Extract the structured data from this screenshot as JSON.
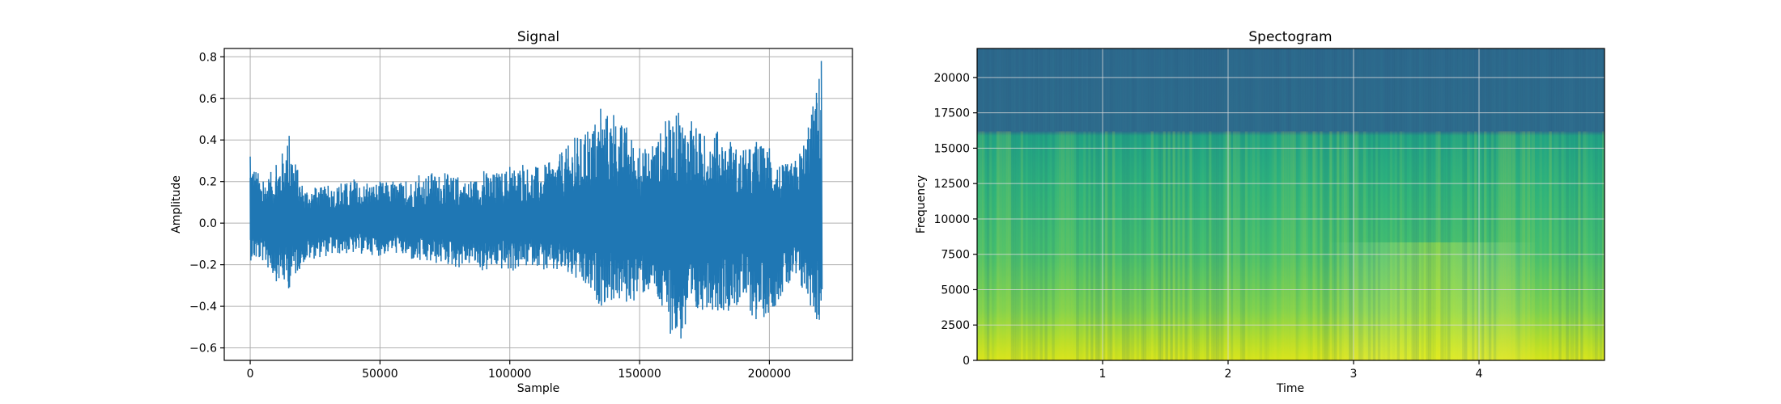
{
  "colors": {
    "signal_line": "#1f77b4",
    "spectrogram_low": "#2d6b8e",
    "spectrogram_mid": "#22a884",
    "spectrogram_high": "#dde318"
  },
  "chart_data": [
    {
      "type": "line",
      "title": "Signal",
      "xlabel": "Sample",
      "ylabel": "Amplitude",
      "xlim": [
        -10000,
        232000
      ],
      "ylim": [
        -0.66,
        0.84
      ],
      "grid": true,
      "x_ticks": [
        0,
        50000,
        100000,
        150000,
        200000
      ],
      "x_tick_labels": [
        "0",
        "50000",
        "100000",
        "150000",
        "200000"
      ],
      "y_ticks": [
        -0.6,
        -0.4,
        -0.2,
        0.0,
        0.2,
        0.4,
        0.6,
        0.8
      ],
      "y_tick_labels": [
        "−0.6",
        "−0.4",
        "−0.2",
        "0.0",
        "0.2",
        "0.4",
        "0.6",
        "0.8"
      ],
      "series": [
        {
          "x": [
            0,
            5000,
            10000,
            15000,
            20000,
            25000,
            30000,
            35000,
            40000,
            45000,
            50000,
            55000,
            60000,
            65000,
            70000,
            75000,
            80000,
            85000,
            90000,
            95000,
            100000,
            105000,
            110000,
            115000,
            120000,
            125000,
            130000,
            135000,
            140000,
            145000,
            150000,
            155000,
            160000,
            165000,
            170000,
            175000,
            180000,
            185000,
            190000,
            195000,
            200000,
            205000,
            210000,
            215000,
            220000
          ],
          "upper": [
            0.32,
            0.2,
            0.28,
            0.42,
            0.18,
            0.17,
            0.18,
            0.19,
            0.21,
            0.19,
            0.2,
            0.2,
            0.2,
            0.23,
            0.24,
            0.24,
            0.22,
            0.2,
            0.25,
            0.24,
            0.27,
            0.28,
            0.27,
            0.29,
            0.34,
            0.41,
            0.44,
            0.55,
            0.52,
            0.46,
            0.36,
            0.37,
            0.49,
            0.53,
            0.49,
            0.42,
            0.44,
            0.39,
            0.35,
            0.39,
            0.36,
            0.28,
            0.3,
            0.46,
            0.78
          ],
          "lower": [
            -0.18,
            -0.19,
            -0.28,
            -0.32,
            -0.2,
            -0.17,
            -0.16,
            -0.15,
            -0.15,
            -0.15,
            -0.16,
            -0.14,
            -0.17,
            -0.2,
            -0.2,
            -0.2,
            -0.22,
            -0.2,
            -0.24,
            -0.22,
            -0.24,
            -0.22,
            -0.2,
            -0.25,
            -0.24,
            -0.28,
            -0.34,
            -0.4,
            -0.38,
            -0.4,
            -0.36,
            -0.33,
            -0.5,
            -0.59,
            -0.53,
            -0.4,
            -0.43,
            -0.42,
            -0.4,
            -0.48,
            -0.44,
            -0.35,
            -0.3,
            -0.38,
            -0.53
          ]
        }
      ]
    },
    {
      "type": "heatmap",
      "title": "Spectogram",
      "xlabel": "Time",
      "ylabel": "Frequency",
      "xlim": [
        0.0,
        5.0
      ],
      "ylim": [
        0,
        22050
      ],
      "grid": true,
      "x_ticks": [
        1,
        2,
        3,
        4
      ],
      "x_tick_labels": [
        "1",
        "2",
        "3",
        "4"
      ],
      "y_ticks": [
        0,
        2500,
        5000,
        7500,
        10000,
        12500,
        15000,
        17500,
        20000
      ],
      "y_tick_labels": [
        "0",
        "2500",
        "5000",
        "7500",
        "10000",
        "12500",
        "15000",
        "17500",
        "20000"
      ],
      "cutoff_frequency": 16200,
      "colormap": "viridis"
    }
  ]
}
